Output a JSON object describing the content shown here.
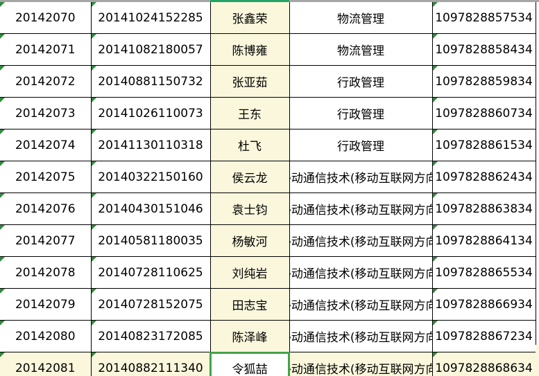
{
  "table": {
    "rows": [
      {
        "student_id": "20142070",
        "exam_no": "20141024152285",
        "name": "张鑫荣",
        "major": "物流管理",
        "serial_no": "1097828857534",
        "highlighted": false
      },
      {
        "student_id": "20142071",
        "exam_no": "20141082180057",
        "name": "陈博雍",
        "major": "物流管理",
        "serial_no": "1097828858434",
        "highlighted": false
      },
      {
        "student_id": "20142072",
        "exam_no": "20140881150732",
        "name": "张亚茹",
        "major": "行政管理",
        "serial_no": "1097828859834",
        "highlighted": false
      },
      {
        "student_id": "20142073",
        "exam_no": "20141026110073",
        "name": "王东",
        "major": "行政管理",
        "serial_no": "1097828860734",
        "highlighted": false
      },
      {
        "student_id": "20142074",
        "exam_no": "20141130110318",
        "name": "杜飞",
        "major": "行政管理",
        "serial_no": "1097828861534",
        "highlighted": false
      },
      {
        "student_id": "20142075",
        "exam_no": "20140322150160",
        "name": "侯云龙",
        "major": "移动通信技术(移动互联网方向)",
        "serial_no": "1097828862434",
        "highlighted": false
      },
      {
        "student_id": "20142076",
        "exam_no": "20140430151046",
        "name": "袁士钧",
        "major": "移动通信技术(移动互联网方向)",
        "serial_no": "1097828863834",
        "highlighted": false
      },
      {
        "student_id": "20142077",
        "exam_no": "20140581180035",
        "name": "杨敏河",
        "major": "移动通信技术(移动互联网方向)",
        "serial_no": "1097828864134",
        "highlighted": false
      },
      {
        "student_id": "20142078",
        "exam_no": "20140728110625",
        "name": "刘纯岩",
        "major": "移动通信技术(移动互联网方向)",
        "serial_no": "1097828865534",
        "highlighted": false
      },
      {
        "student_id": "20142079",
        "exam_no": "20140728152075",
        "name": "田志宝",
        "major": "移动通信技术(移动互联网方向)",
        "serial_no": "1097828866934",
        "highlighted": false
      },
      {
        "student_id": "20142080",
        "exam_no": "20140823172085",
        "name": "陈泽峰",
        "major": "移动通信技术(移动互联网方向)",
        "serial_no": "1097828867234",
        "highlighted": false
      },
      {
        "student_id": "20142081",
        "exam_no": "20140882111340",
        "name": "令狐喆",
        "major": "移动通信技术(移动互联网方向)",
        "serial_no": "1097828868634",
        "highlighted": true
      }
    ]
  },
  "selection": {
    "row_index": 11,
    "column": "name",
    "active_value": "令狐喆"
  },
  "colors": {
    "highlight_yellow": "#FAF7DC",
    "serial_red": "#FF0000",
    "selection_green": "#44A248",
    "error_indicator_green": "#2E8B3C",
    "header_strip_gray": "#A6A6A6",
    "header_strip_active_green": "#21A366",
    "grid_border": "#000000"
  }
}
